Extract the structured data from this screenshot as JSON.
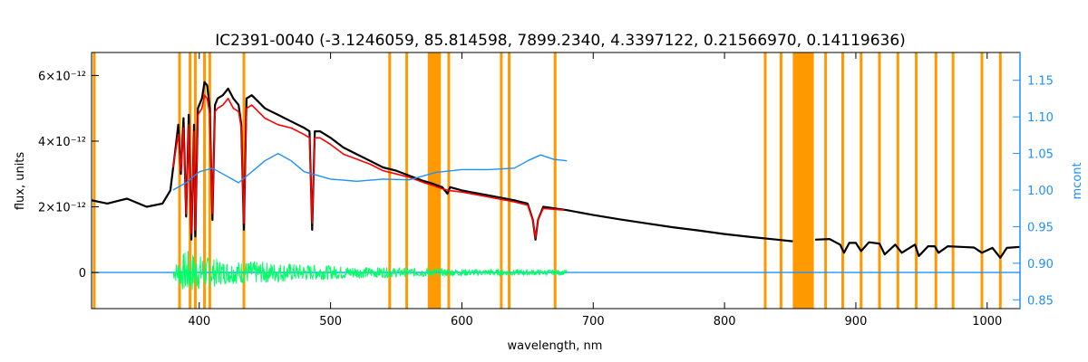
{
  "chart_data": {
    "type": "line",
    "title": "IC2391-0040    (-3.1246059, 85.814598, 7899.2340, 4.3397122, 0.21566970, 0.14119636)",
    "xlabel": "wavelength, nm",
    "ylabel": "flux, units",
    "ylabel_right": "mcont",
    "xlim": [
      318,
      1025
    ],
    "ylim": [
      -1.1,
      6.7
    ],
    "ylim_right": [
      0.838,
      1.188
    ],
    "x_ticks": [
      400,
      500,
      600,
      700,
      800,
      900,
      1000
    ],
    "y_ticks": [
      {
        "value": 0,
        "label": "0"
      },
      {
        "value": 2,
        "label": "2×10⁻¹²"
      },
      {
        "value": 4,
        "label": "4×10⁻¹²"
      },
      {
        "value": 6,
        "label": "6×10⁻¹²"
      }
    ],
    "y_right_ticks": [
      "0.85",
      "0.90",
      "0.95",
      "1.00",
      "1.05",
      "1.10",
      "1.15"
    ],
    "mask_lines": [
      320,
      385,
      393,
      397,
      404,
      408,
      434,
      545,
      558,
      590,
      630,
      636,
      671,
      831,
      843,
      877,
      890,
      904,
      918,
      932,
      946,
      961,
      974,
      996,
      1010
    ],
    "mask_bands": [
      [
        574,
        584
      ],
      [
        852,
        868
      ]
    ],
    "series": [
      {
        "color": "#000000",
        "x": [
          318,
          330,
          345,
          360,
          372,
          378,
          382,
          384,
          386,
          388,
          390,
          392,
          394,
          396,
          397,
          399,
          402,
          404,
          406,
          408,
          410,
          412,
          414,
          418,
          422,
          426,
          430,
          432,
          434,
          436,
          440,
          445,
          450,
          455,
          460,
          470,
          480,
          484,
          486,
          488,
          492,
          500,
          510,
          520,
          530,
          540,
          550,
          560,
          570,
          578,
          585,
          589,
          591,
          600,
          620,
          640,
          650,
          654,
          656,
          658,
          662,
          680,
          700,
          720,
          740,
          760,
          780,
          800,
          820,
          840,
          852
        ],
        "y": [
          2.2,
          2.1,
          2.25,
          2.0,
          2.1,
          2.5,
          3.8,
          4.5,
          3.0,
          4.7,
          1.7,
          4.8,
          1.0,
          4.5,
          1.1,
          5.0,
          5.3,
          5.8,
          5.7,
          5.0,
          1.6,
          5.1,
          5.3,
          5.4,
          5.6,
          5.3,
          5.1,
          4.5,
          1.3,
          5.3,
          5.4,
          5.2,
          5.0,
          4.9,
          4.8,
          4.6,
          4.4,
          4.3,
          1.3,
          4.3,
          4.3,
          4.1,
          3.8,
          3.6,
          3.4,
          3.2,
          3.1,
          2.95,
          2.8,
          2.7,
          2.6,
          2.4,
          2.6,
          2.5,
          2.35,
          2.2,
          2.1,
          1.6,
          1.0,
          1.6,
          2.0,
          1.9,
          1.75,
          1.62,
          1.5,
          1.38,
          1.28,
          1.17,
          1.08,
          1.0,
          0.95
        ]
      },
      {
        "color": "#000000",
        "x": [
          869,
          880,
          888,
          891,
          895,
          900,
          904,
          910,
          918,
          922,
          930,
          935,
          945,
          948,
          955,
          960,
          963,
          970,
          980,
          990,
          996,
          1004,
          1010,
          1015,
          1025
        ],
        "y": [
          1.0,
          1.02,
          0.85,
          0.6,
          0.9,
          0.9,
          0.65,
          0.92,
          0.88,
          0.55,
          0.85,
          0.6,
          0.85,
          0.5,
          0.8,
          0.8,
          0.6,
          0.8,
          0.78,
          0.76,
          0.6,
          0.75,
          0.45,
          0.75,
          0.78
        ]
      },
      {
        "color": "#ff0000",
        "x": [
          380,
          384,
          386,
          388,
          390,
          392,
          394,
          396,
          397,
          399,
          402,
          404,
          406,
          408,
          410,
          412,
          414,
          418,
          422,
          426,
          430,
          432,
          434,
          436,
          440,
          445,
          450,
          455,
          460,
          470,
          480,
          484,
          486,
          488,
          492,
          500,
          510,
          520,
          530,
          540,
          550,
          560,
          570,
          578,
          585,
          590,
          600,
          620,
          640,
          650,
          654,
          656,
          658,
          662,
          678
        ],
        "y": [
          3.2,
          4.2,
          3.1,
          4.4,
          1.8,
          4.5,
          1.2,
          4.3,
          1.3,
          4.8,
          5.0,
          5.4,
          5.3,
          4.8,
          1.8,
          4.9,
          5.0,
          5.1,
          5.3,
          5.0,
          4.9,
          4.4,
          1.5,
          5.0,
          5.1,
          4.9,
          4.7,
          4.6,
          4.5,
          4.4,
          4.2,
          4.1,
          1.5,
          4.1,
          4.1,
          3.9,
          3.6,
          3.45,
          3.3,
          3.1,
          3.0,
          2.9,
          2.75,
          2.65,
          2.55,
          2.5,
          2.45,
          2.3,
          2.15,
          2.05,
          1.6,
          1.05,
          1.6,
          1.95,
          1.9
        ]
      },
      {
        "color": "#1e90ff",
        "axis": "right",
        "x": [
          380,
          390,
          400,
          410,
          420,
          430,
          440,
          450,
          460,
          465,
          470,
          480,
          490,
          500,
          520,
          540,
          560,
          580,
          600,
          620,
          640,
          650,
          660,
          670,
          680
        ],
        "y": [
          1.0,
          1.01,
          1.025,
          1.03,
          1.02,
          1.01,
          1.025,
          1.04,
          1.05,
          1.045,
          1.04,
          1.025,
          1.02,
          1.015,
          1.012,
          1.015,
          1.014,
          1.024,
          1.028,
          1.028,
          1.03,
          1.04,
          1.048,
          1.042,
          1.04
        ]
      },
      {
        "color": "#1e90ff",
        "x": [
          318,
          1025
        ],
        "y": [
          0.0,
          0.0
        ]
      },
      {
        "color": "#00ff66",
        "x": [
          380,
          680
        ],
        "y": [
          0.0,
          0.0
        ],
        "residual_envelope": {
          "x": [
            380,
            390,
            400,
            420,
            440,
            460,
            480,
            500,
            520,
            550,
            580,
            620,
            680
          ],
          "amplitude": [
            0.2,
            0.7,
            0.55,
            0.35,
            0.35,
            0.3,
            0.25,
            0.22,
            0.18,
            0.15,
            0.12,
            0.1,
            0.08
          ]
        }
      }
    ]
  }
}
